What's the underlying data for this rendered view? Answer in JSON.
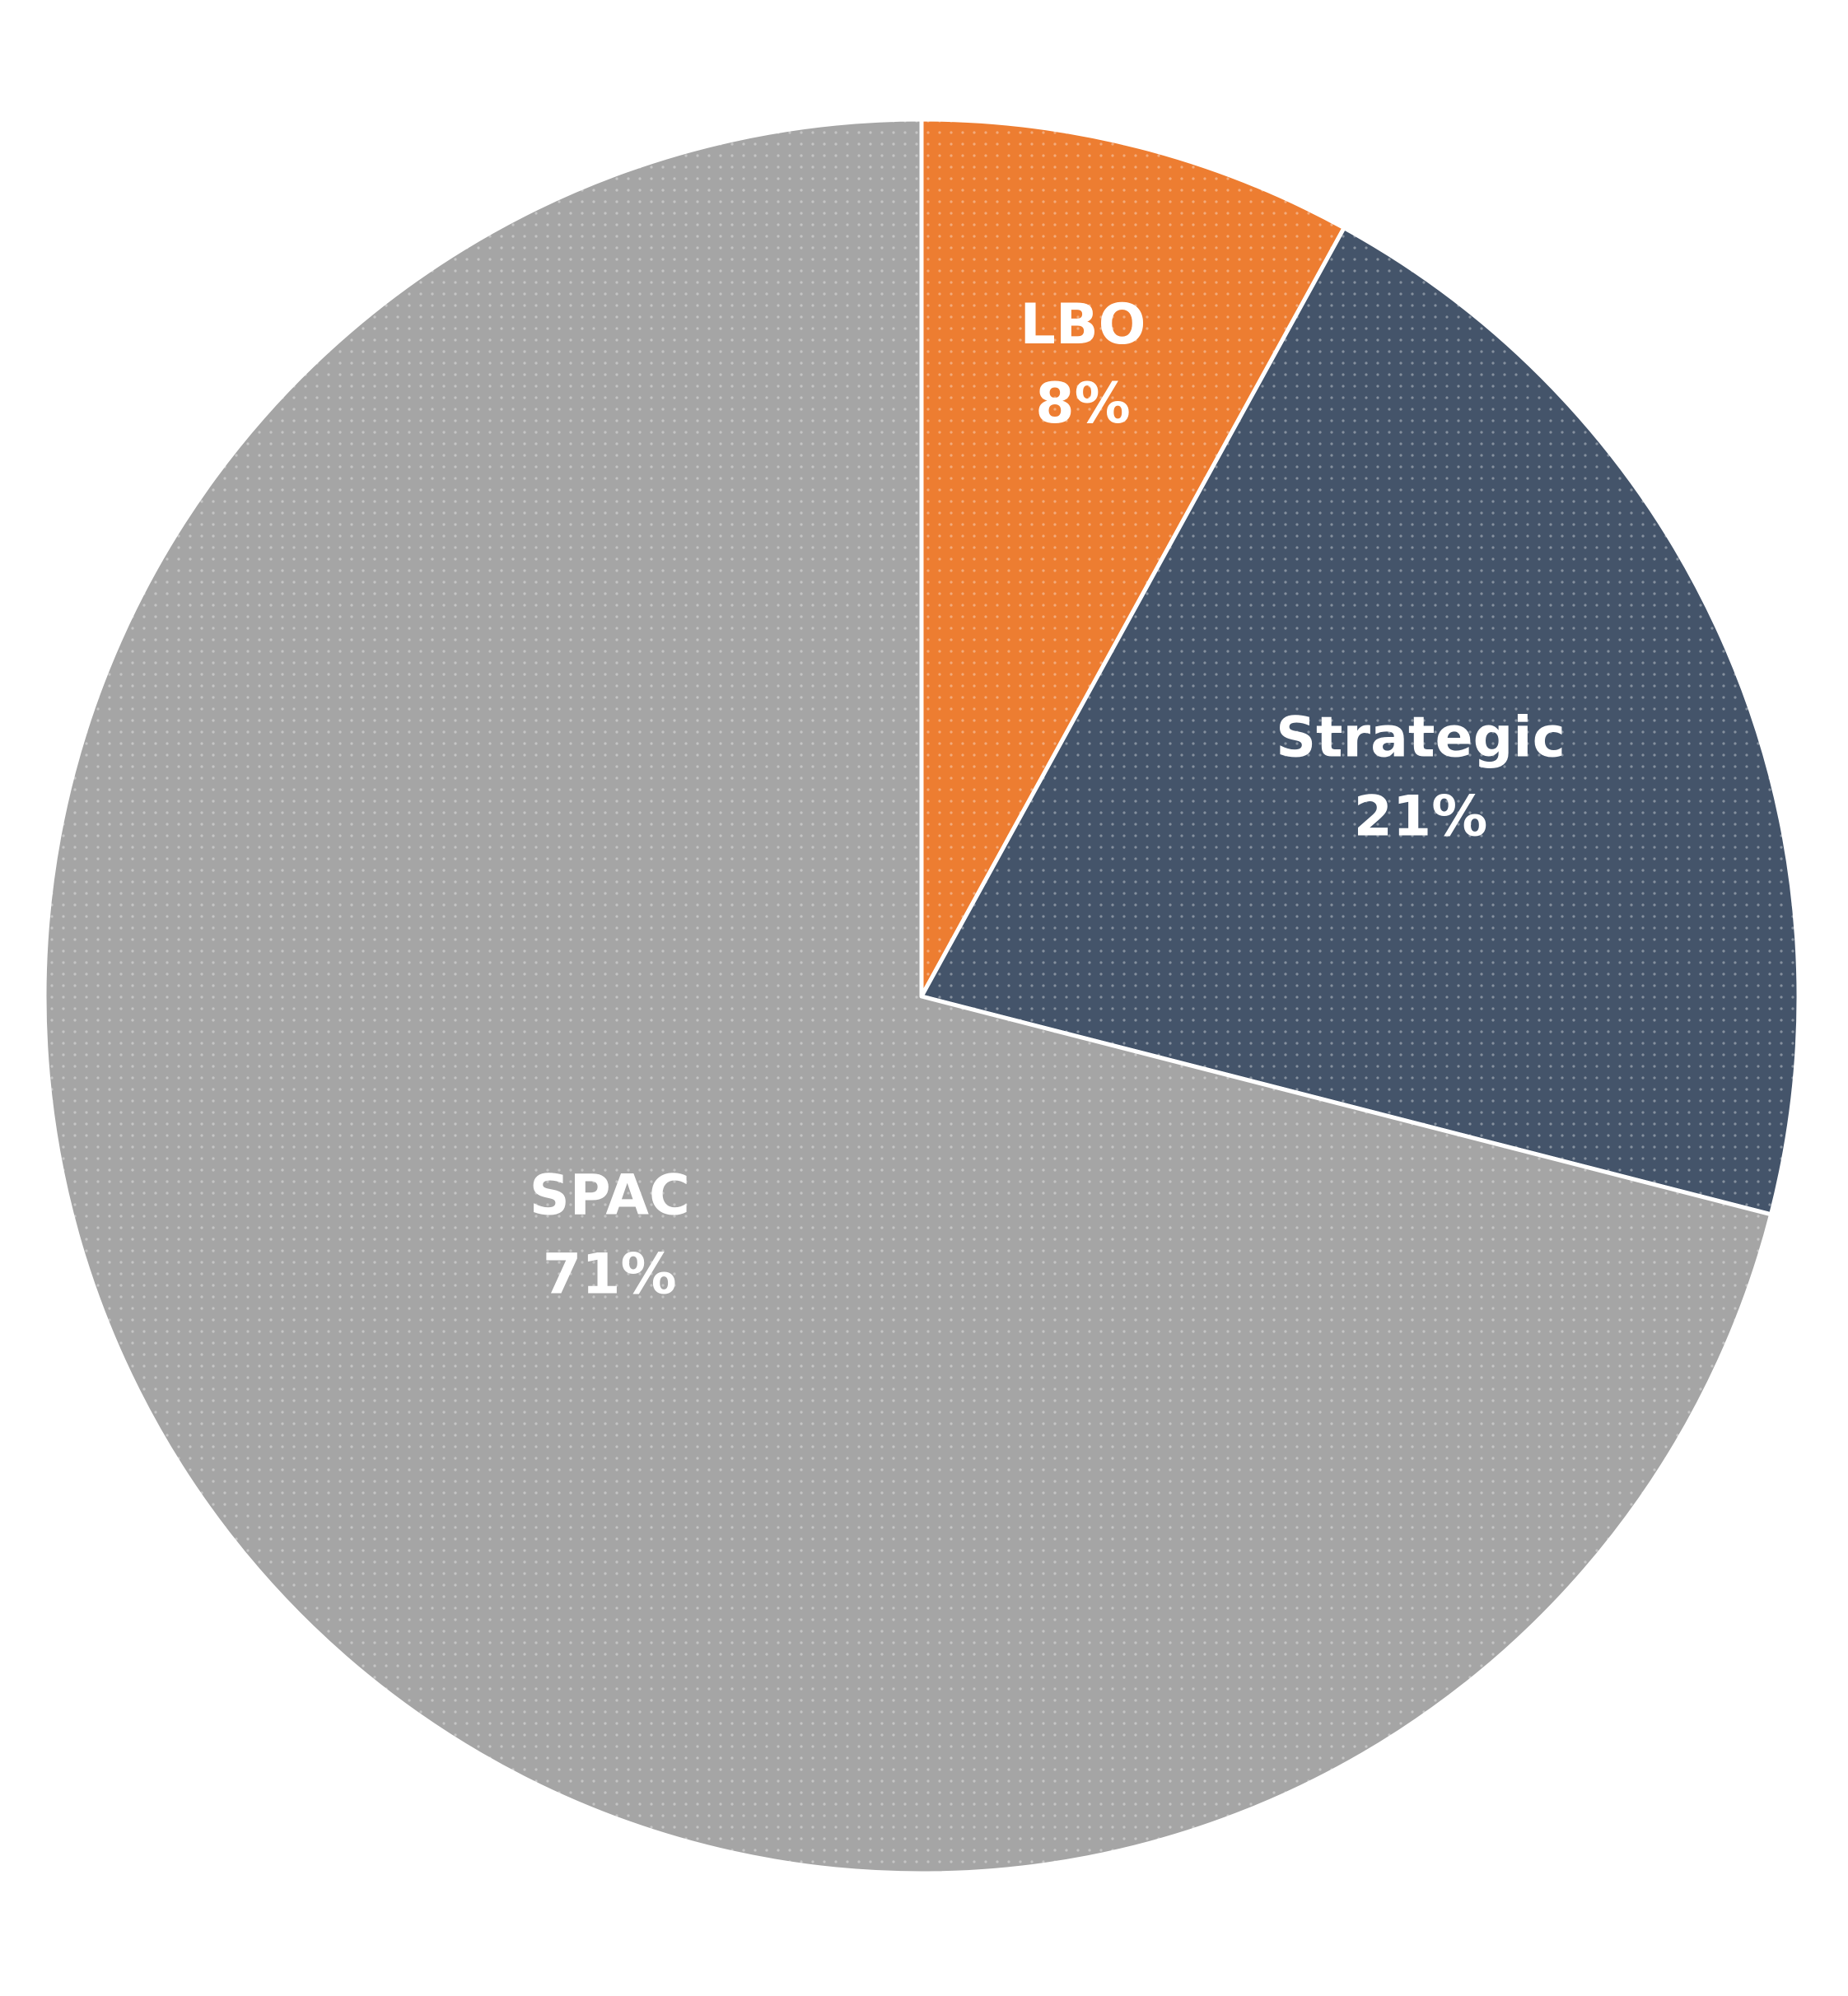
{
  "chart_data": {
    "type": "pie",
    "categories": [
      "LBO",
      "Strategic",
      "SPAC"
    ],
    "values": [
      8,
      21,
      71
    ],
    "value_labels": [
      "8%",
      "21%",
      "71%"
    ],
    "colors": [
      "#ed7d31",
      "#44546a",
      "#a5a5a5"
    ]
  }
}
